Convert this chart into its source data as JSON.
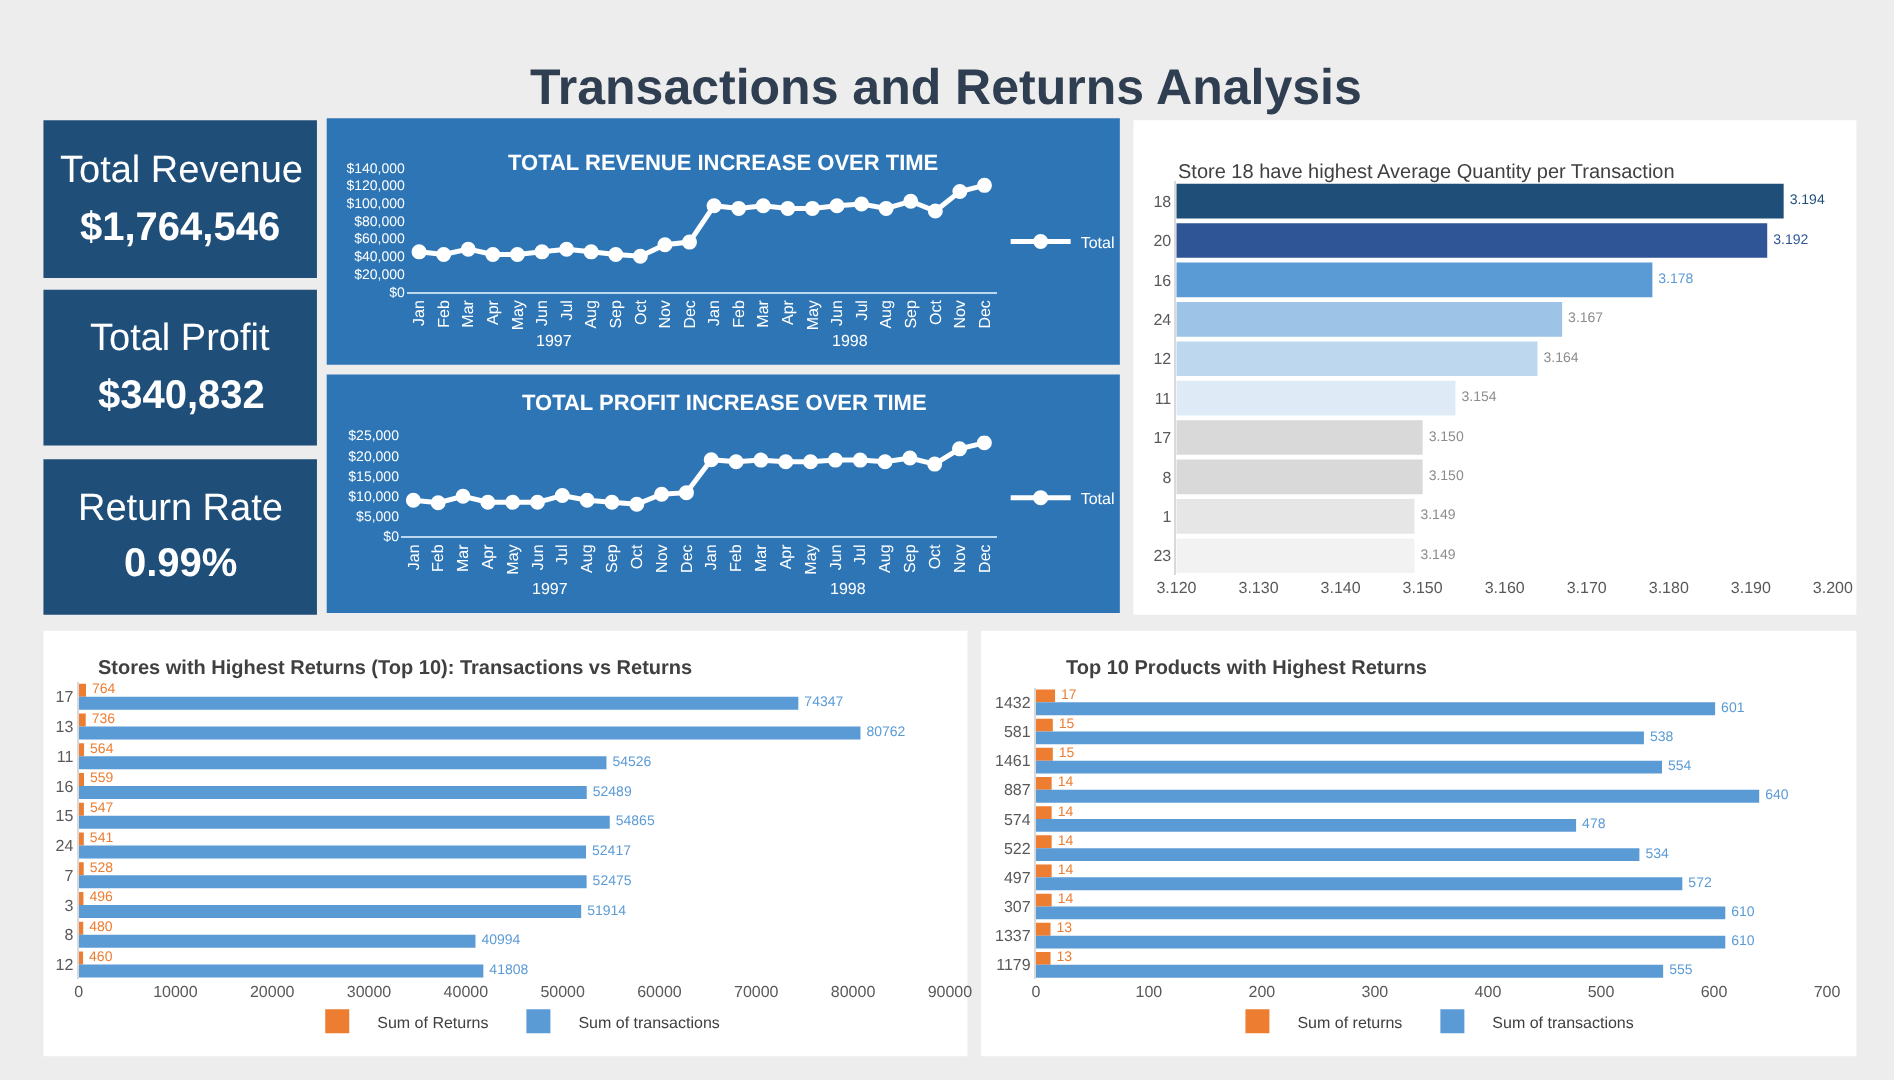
{
  "chart_data": [
    {
      "type": "other",
      "title": "Transactions and Returns Analysis"
    },
    {
      "type": "other",
      "title": "Total Revenue",
      "annotations": [
        "$1,764,546"
      ]
    },
    {
      "type": "other",
      "title": "Total Profit",
      "annotations": [
        "$340,832"
      ]
    },
    {
      "type": "other",
      "title": "Return Rate",
      "annotations": [
        "0.99%"
      ]
    },
    {
      "type": "line",
      "title": "TOTAL REVENUE INCREASE OVER TIME",
      "categories": [
        "Jan",
        "Feb",
        "Mar",
        "Apr",
        "May",
        "Jun",
        "Jul",
        "Aug",
        "Sep",
        "Oct",
        "Nov",
        "Dec",
        "Jan",
        "Feb",
        "Mar",
        "Apr",
        "May",
        "Jun",
        "Jul",
        "Aug",
        "Sep",
        "Oct",
        "Nov",
        "Dec"
      ],
      "annotations": [
        "1997",
        "1998"
      ],
      "series": [
        {
          "name": "Total",
          "color": "#ffffff",
          "values": [
            45000,
            42000,
            48000,
            42000,
            42000,
            45000,
            48000,
            45000,
            42000,
            40000,
            53000,
            56000,
            97000,
            94000,
            97000,
            94000,
            94000,
            97000,
            99000,
            94000,
            102000,
            91000,
            113000,
            120000
          ]
        }
      ],
      "ylim": [
        0,
        140000
      ],
      "yticks": [
        {
          "value": 0,
          "label": "$0"
        },
        {
          "value": 20000,
          "label": "$20,000"
        },
        {
          "value": 40000,
          "label": "$40,000"
        },
        {
          "value": 60000,
          "label": "$60,000"
        },
        {
          "value": 80000,
          "label": "$80,000"
        },
        {
          "value": 100000,
          "label": "$100,000"
        },
        {
          "value": 120000,
          "label": "$120,000"
        },
        {
          "value": 140000,
          "label": "$140,000"
        }
      ],
      "legend": "right",
      "marker": "circle",
      "line_style": "solid"
    },
    {
      "type": "line",
      "title": "TOTAL PROFIT INCREASE OVER TIME",
      "categories": [
        "Jan",
        "Feb",
        "Mar",
        "Apr",
        "May",
        "Jun",
        "Jul",
        "Aug",
        "Sep",
        "Oct",
        "Nov",
        "Dec",
        "Jan",
        "Feb",
        "Mar",
        "Apr",
        "May",
        "Jun",
        "Jul",
        "Aug",
        "Sep",
        "Oct",
        "Nov",
        "Dec"
      ],
      "annotations": [
        "1997",
        "1998"
      ],
      "series": [
        {
          "name": "Total",
          "color": "#ffffff",
          "values": [
            8900,
            8300,
            9900,
            8400,
            8400,
            8400,
            10100,
            8900,
            8400,
            7900,
            10400,
            10800,
            19000,
            18500,
            18900,
            18500,
            18500,
            18900,
            18900,
            18500,
            19400,
            17900,
            21700,
            23200
          ]
        }
      ],
      "ylim": [
        0,
        25000
      ],
      "yticks": [
        {
          "value": 0,
          "label": "$0"
        },
        {
          "value": 5000,
          "label": "$5,000"
        },
        {
          "value": 10000,
          "label": "$10,000"
        },
        {
          "value": 15000,
          "label": "$15,000"
        },
        {
          "value": 20000,
          "label": "$20,000"
        },
        {
          "value": 25000,
          "label": "$25,000"
        }
      ],
      "legend": "right",
      "marker": "circle",
      "line_style": "solid"
    },
    {
      "type": "bar",
      "orientation": "horizontal",
      "title": "Store 18 have highest Average Quantity per Transaction",
      "categories": [
        "18",
        "20",
        "16",
        "24",
        "12",
        "11",
        "17",
        "8",
        "1",
        "23"
      ],
      "values": [
        3.194,
        3.192,
        3.178,
        3.167,
        3.164,
        3.154,
        3.15,
        3.15,
        3.149,
        3.149
      ],
      "value_labels": [
        "3.194",
        "3.192",
        "3.178",
        "3.167",
        "3.164",
        "3.154",
        "3.150",
        "3.150",
        "3.149",
        "3.149"
      ],
      "colors": [
        "#1f4e79",
        "#2f5597",
        "#5b9bd5",
        "#9dc3e6",
        "#bdd7ee",
        "#deebf7",
        "#d9d9d9",
        "#d9d9d9",
        "#e7e6e6",
        "#f2f2f2"
      ],
      "xlim": [
        3.12,
        3.2
      ],
      "xticks": [
        {
          "value": 3.12,
          "label": "3.120"
        },
        {
          "value": 3.13,
          "label": "3.130"
        },
        {
          "value": 3.14,
          "label": "3.140"
        },
        {
          "value": 3.15,
          "label": "3.150"
        },
        {
          "value": 3.16,
          "label": "3.160"
        },
        {
          "value": 3.17,
          "label": "3.170"
        },
        {
          "value": 3.18,
          "label": "3.180"
        },
        {
          "value": 3.19,
          "label": "3.190"
        },
        {
          "value": 3.2,
          "label": "3.200"
        }
      ]
    },
    {
      "type": "bar",
      "orientation": "horizontal",
      "title": "Stores with Highest Returns (Top 10): Transactions vs Returns",
      "categories": [
        "17",
        "13",
        "11",
        "16",
        "15",
        "24",
        "7",
        "3",
        "8",
        "12"
      ],
      "series": [
        {
          "name": "Sum of Returns",
          "color": "#ed7d31",
          "values": [
            764,
            736,
            564,
            559,
            547,
            541,
            528,
            496,
            480,
            460
          ]
        },
        {
          "name": "Sum of transactions",
          "color": "#5b9bd5",
          "values": [
            74347,
            80762,
            54526,
            52489,
            54865,
            52417,
            52475,
            51914,
            40994,
            41808
          ]
        }
      ],
      "xlim": [
        0,
        90000
      ],
      "xticks": [
        0,
        10000,
        20000,
        30000,
        40000,
        50000,
        60000,
        70000,
        80000,
        90000
      ],
      "data_labels": true,
      "legend": "bottom"
    },
    {
      "type": "bar",
      "orientation": "horizontal",
      "title": "Top 10 Products with Highest Returns",
      "categories": [
        "1432",
        "581",
        "1461",
        "887",
        "574",
        "522",
        "497",
        "307",
        "1337",
        "1179"
      ],
      "series": [
        {
          "name": "Sum of returns",
          "color": "#ed7d31",
          "values": [
            17,
            15,
            15,
            14,
            14,
            14,
            14,
            14,
            13,
            13
          ]
        },
        {
          "name": "Sum of transactions",
          "color": "#5b9bd5",
          "values": [
            601,
            538,
            554,
            640,
            478,
            534,
            572,
            610,
            610,
            555
          ]
        }
      ],
      "xlim": [
        0,
        700
      ],
      "xticks": [
        0,
        100,
        200,
        300,
        400,
        500,
        600,
        700
      ],
      "data_labels": true,
      "legend": "bottom"
    }
  ]
}
